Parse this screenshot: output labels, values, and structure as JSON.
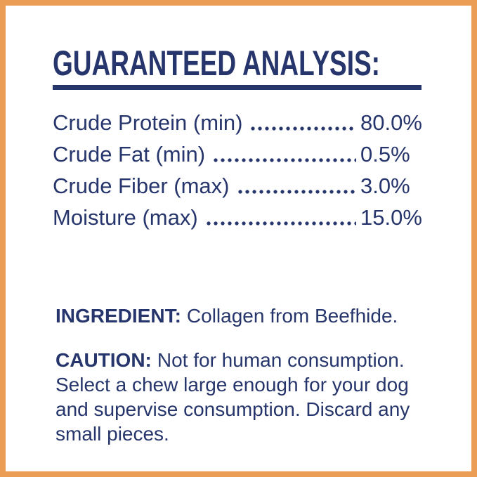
{
  "panel": {
    "title": "GUARANTEED ANALYSIS:",
    "rows": [
      {
        "name": "Crude Protein (min)",
        "value": "80.0%"
      },
      {
        "name": "Crude Fat (min)",
        "value": "0.5%"
      },
      {
        "name": "Crude Fiber (max)",
        "value": "3.0%"
      },
      {
        "name": "Moisture (max)",
        "value": "15.0%"
      }
    ],
    "ingredient": {
      "label": "INGREDIENT:",
      "text": "Collagen from Beefhide."
    },
    "caution": {
      "label": "CAUTION:",
      "text": "Not for human consumption. Select a chew large enough for your dog and supervise consumption. Discard any small pieces."
    },
    "colors": {
      "text_navy": "#26356B",
      "border_orange": "#EC9D55",
      "background": "#FFFFFF"
    }
  }
}
